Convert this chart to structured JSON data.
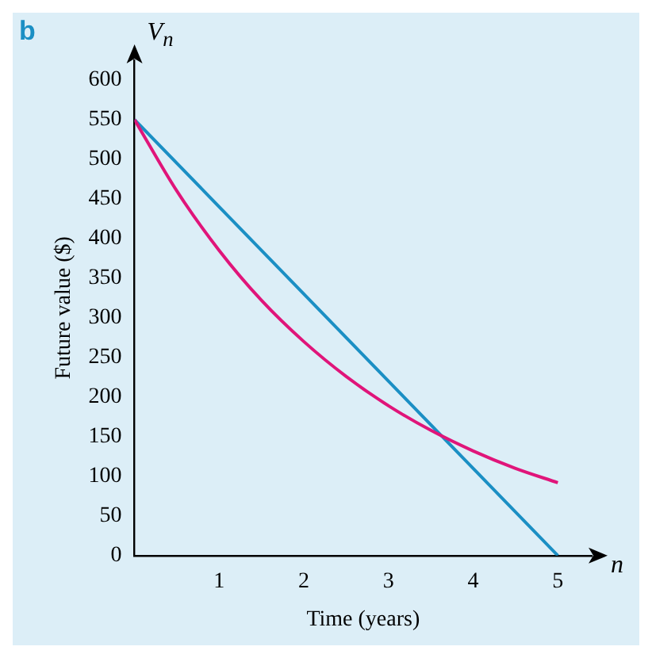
{
  "chart_data": {
    "type": "line",
    "xlabel": "Time (years)",
    "ylabel": "Future value ($)",
    "annotations": [
      "b",
      "V$_{n}$",
      "n"
    ],
    "xlim": [
      0,
      5.4
    ],
    "ylim": [
      0,
      625
    ],
    "xticks": [
      {
        "value": 0,
        "label": null
      },
      1,
      2,
      3,
      4,
      5
    ],
    "yticks": [
      0,
      50,
      100,
      150,
      200,
      250,
      300,
      350,
      400,
      450,
      500,
      550,
      600
    ],
    "grid": false,
    "series": [
      {
        "color": "#e0157a",
        "x": [
          0,
          0.5,
          1,
          1.5,
          2,
          2.5,
          3,
          3.5,
          4,
          4.5,
          5
        ],
        "values": [
          550,
          460,
          385,
          322,
          270,
          226,
          189,
          158,
          132,
          110,
          92
        ]
      },
      {
        "color": "#1b8fc4",
        "x": [
          0,
          5
        ],
        "values": [
          550,
          0
        ]
      }
    ]
  }
}
